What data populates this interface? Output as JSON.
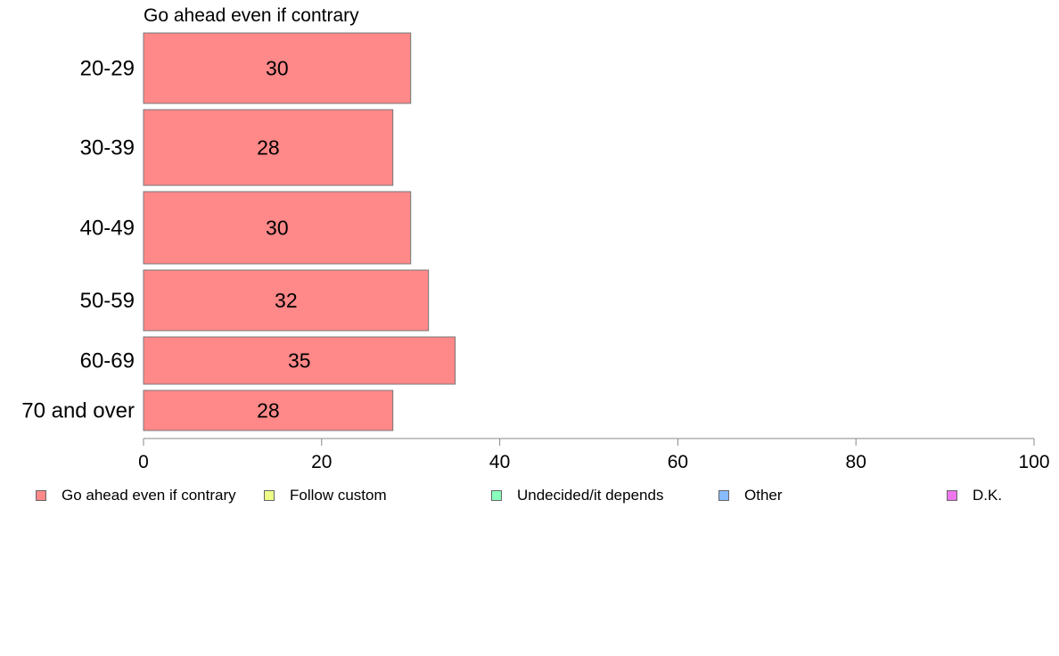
{
  "chart_data": {
    "type": "bar",
    "orientation": "horizontal",
    "title": "Go ahead even if contrary",
    "categories": [
      "20-29",
      "30-39",
      "40-49",
      "50-59",
      "60-69",
      "70 and over"
    ],
    "series": [
      {
        "name": "Go ahead even if contrary",
        "color": "#ff8888",
        "values": [
          30,
          28,
          30,
          32,
          35,
          28
        ],
        "labels": [
          "30",
          "28",
          "30",
          "32",
          "35",
          "28"
        ]
      }
    ],
    "xlim": [
      0,
      100
    ],
    "xticks": [
      0,
      20,
      40,
      60,
      80,
      100
    ],
    "xtick_labels": [
      "0",
      "20",
      "40",
      "60",
      "80",
      "100"
    ],
    "grid": false,
    "legend_position": "bottom",
    "legend": [
      {
        "name": "Go ahead even if contrary",
        "color": "#ff8888"
      },
      {
        "name": "Follow custom",
        "color": "#eeff88"
      },
      {
        "name": "Undecided/it depends",
        "color": "#88ffbb"
      },
      {
        "name": "Other",
        "color": "#88bbff"
      },
      {
        "name": "D.K.",
        "color": "#ee77ee"
      }
    ]
  }
}
